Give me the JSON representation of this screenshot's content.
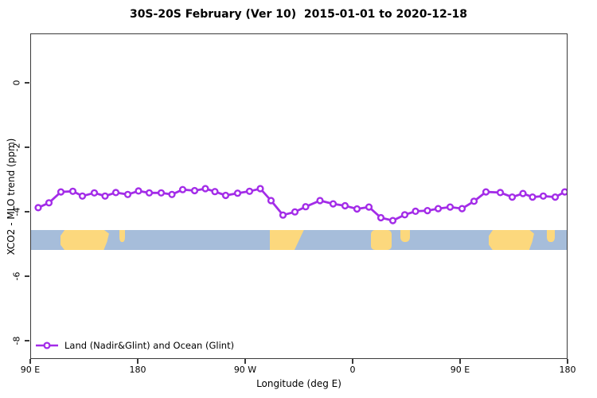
{
  "header": {
    "title": "30S-20S February (Ver 10)  2015-01-01 to 2020-12-18"
  },
  "axes": {
    "xlabel": "Longitude (deg E)",
    "ylabel": "XCO2 - MLO trend (ppm)"
  },
  "legend": {
    "label": "Land (Nadir&Glint) and Ocean (Glint)"
  },
  "colors": {
    "series_purple": "#a32ce8",
    "ocean_blue": "#a6bdda",
    "land_yellow": "#fcd87d",
    "axis_gray": "#3a3a3a"
  },
  "chart_data": {
    "type": "line",
    "title": "30S-20S February (Ver 10)  2015-01-01 to 2020-12-18",
    "xlabel": "Longitude (deg E)",
    "ylabel": "XCO2 - MLO trend (ppm)",
    "xlim_deg_continuous": [
      90,
      540
    ],
    "ylim": [
      -8.6,
      1.5
    ],
    "grid": false,
    "legend_position": "bottom-left-inside",
    "x_ticks": [
      {
        "lon": 90,
        "label": "90 E"
      },
      {
        "lon": 180,
        "label": "180"
      },
      {
        "lon": 270,
        "label": "90 W"
      },
      {
        "lon": 360,
        "label": "0"
      },
      {
        "lon": 450,
        "label": "90 E"
      },
      {
        "lon": 540,
        "label": "180"
      }
    ],
    "y_ticks": [
      {
        "value": 0,
        "label": "0"
      },
      {
        "value": -2,
        "label": "-2"
      },
      {
        "value": -4,
        "label": "-4"
      },
      {
        "value": -6,
        "label": "-6"
      },
      {
        "value": -8,
        "label": "-8"
      }
    ],
    "series": [
      {
        "name": "Land (Nadir&Glint) and Ocean (Glint)",
        "color": "#a32ce8",
        "marker": "open-circle",
        "x_deg_continuous": [
          96,
          105,
          115,
          125,
          133,
          143,
          152,
          161,
          171,
          180,
          189,
          199,
          208,
          217,
          227,
          236,
          244,
          253,
          263,
          273,
          282,
          291,
          301,
          311,
          320,
          332,
          343,
          353,
          363,
          373,
          383,
          393,
          403,
          412,
          422,
          431,
          441,
          451,
          461,
          471,
          483,
          493,
          502,
          510,
          519,
          529,
          537
        ],
        "y_ppm": [
          -3.85,
          -3.7,
          -3.36,
          -3.34,
          -3.49,
          -3.39,
          -3.49,
          -3.38,
          -3.44,
          -3.33,
          -3.39,
          -3.39,
          -3.44,
          -3.29,
          -3.32,
          -3.26,
          -3.35,
          -3.47,
          -3.4,
          -3.34,
          -3.26,
          -3.63,
          -4.08,
          -3.98,
          -3.82,
          -3.63,
          -3.73,
          -3.79,
          -3.89,
          -3.83,
          -4.16,
          -4.25,
          -4.07,
          -3.96,
          -3.94,
          -3.88,
          -3.83,
          -3.88,
          -3.65,
          -3.36,
          -3.38,
          -3.52,
          -3.41,
          -3.52,
          -3.49,
          -3.52,
          -3.36
        ]
      }
    ],
    "map_strip": {
      "lat_band": "30S-20S",
      "value_top": -4.54,
      "value_bottom": -5.17,
      "ocean_color": "#a6bdda",
      "land_color": "#fcd87d",
      "land_segments": [
        {
          "name": "australia",
          "from": 114.5,
          "to": 155.3,
          "shape": "land-aus"
        },
        {
          "name": "new-caledonia",
          "from": 164.0,
          "to": 168.5,
          "shape": "land-top"
        },
        {
          "name": "south-america",
          "from": 290.0,
          "to": 318.5,
          "shape": "land-taper-right"
        },
        {
          "name": "africa",
          "from": 374.5,
          "to": 392.0,
          "shape": "land-full"
        },
        {
          "name": "madagascar",
          "from": 399.0,
          "to": 407.5,
          "shape": "land-top"
        },
        {
          "name": "australia-2",
          "from": 473.3,
          "to": 511.3,
          "shape": "land-aus"
        },
        {
          "name": "new-caledonia-2",
          "from": 522.0,
          "to": 528.5,
          "shape": "land-top"
        }
      ]
    }
  }
}
